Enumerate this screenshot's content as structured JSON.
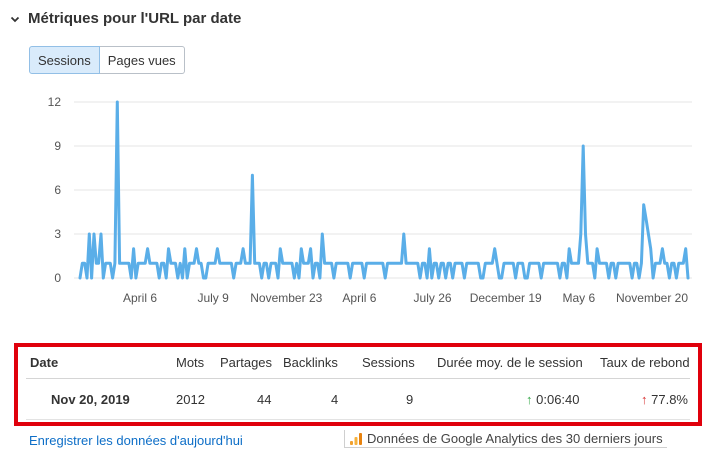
{
  "section": {
    "title": "Métriques pour l'URL par date"
  },
  "toggles": [
    {
      "label": "Sessions",
      "active": true
    },
    {
      "label": "Pages vues",
      "active": false
    }
  ],
  "chart_data": {
    "type": "line",
    "title": "",
    "xlabel": "",
    "ylabel": "",
    "ylim": [
      0,
      12
    ],
    "y_ticks": [
      "0",
      "3",
      "6",
      "9",
      "12"
    ],
    "x_tick_labels": [
      "April 6",
      "July 9",
      "November 23",
      "April 6",
      "July 26",
      "December 19",
      "May 6",
      "November 20"
    ],
    "grid": true,
    "color": "#5aaee8",
    "series": [
      {
        "values": [
          0,
          1,
          1,
          0,
          3,
          0,
          3,
          1,
          1,
          3,
          0,
          1,
          1,
          1,
          0,
          1,
          12,
          1,
          1,
          1,
          1,
          1,
          0,
          2,
          0,
          1,
          1,
          1,
          1,
          2,
          1,
          1,
          1,
          1,
          0,
          1,
          1,
          0,
          2,
          1,
          1,
          1,
          0,
          1,
          0,
          2,
          0,
          1,
          1,
          1,
          2,
          1,
          1,
          0,
          0,
          1,
          1,
          1,
          1,
          2,
          1,
          1,
          1,
          1,
          1,
          1,
          0,
          1,
          1,
          1,
          2,
          1,
          1,
          1,
          7,
          1,
          1,
          1,
          0,
          1,
          1,
          0,
          1,
          1,
          1,
          0,
          2,
          1,
          1,
          1,
          1,
          1,
          0,
          1,
          0,
          2,
          1,
          1,
          1,
          2,
          0,
          1,
          1,
          0,
          3,
          1,
          1,
          1,
          1,
          0,
          1,
          1,
          1,
          1,
          1,
          1,
          0,
          1,
          1,
          1,
          1,
          1,
          0,
          1,
          1,
          1,
          1,
          1,
          1,
          1,
          1,
          0,
          1,
          1,
          1,
          1,
          1,
          1,
          1,
          3,
          1,
          1,
          1,
          1,
          1,
          1,
          0,
          1,
          1,
          0,
          2,
          0,
          1,
          1,
          0,
          1,
          1,
          0,
          1,
          1,
          0,
          1,
          1,
          1,
          1,
          0,
          1,
          1,
          1,
          1,
          1,
          1,
          0,
          0,
          1,
          1,
          1,
          1,
          2,
          1,
          0,
          0,
          1,
          1,
          1,
          1,
          1,
          0,
          1,
          1,
          1,
          0,
          0,
          1,
          1,
          1,
          1,
          1,
          0,
          1,
          1,
          1,
          1,
          1,
          1,
          1,
          0,
          1,
          1,
          0,
          2,
          1,
          1,
          1,
          1,
          3,
          9,
          3,
          1,
          1,
          1,
          0,
          2,
          1,
          1,
          1,
          1,
          0,
          1,
          1,
          0,
          1,
          1,
          1,
          1,
          1,
          1,
          0,
          1,
          1,
          0,
          1,
          5,
          4,
          3,
          2,
          0,
          1,
          1,
          1,
          2,
          1,
          1,
          0,
          1,
          1,
          0,
          1,
          1,
          1,
          2,
          0
        ]
      }
    ]
  },
  "table": {
    "headers": {
      "date": "Date",
      "mots": "Mots",
      "partages": "Partages",
      "backlinks": "Backlinks",
      "sessions": "Sessions",
      "duree": "Durée moy. de le session",
      "rebond": "Taux de rebond"
    },
    "row": {
      "date": "Nov 20, 2019",
      "mots": "2012",
      "partages": "44",
      "backlinks": "4",
      "sessions": "9",
      "duree": "0:06:40",
      "rebond": "77.8%"
    },
    "colors": {
      "up_green": "#37a84a",
      "up_red": "#d83434",
      "highlight_border": "#e0000c"
    }
  },
  "footer": {
    "link": "Enregistrer les données d'aujourd'hui",
    "source": "Données de Google Analytics des 30 derniers jours",
    "icon": "google-analytics-icon"
  }
}
